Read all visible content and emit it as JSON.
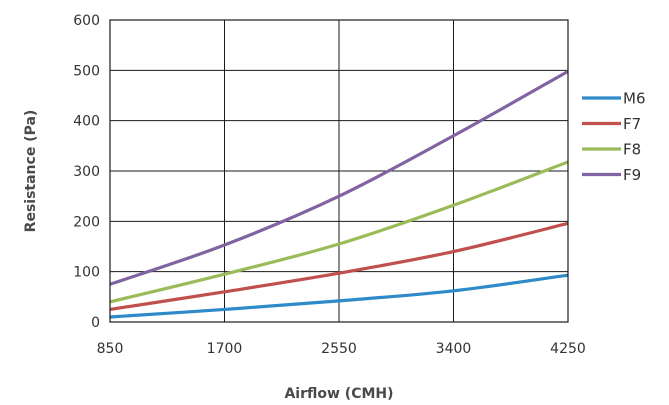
{
  "chart_data": {
    "type": "line",
    "title": "",
    "xlabel": "Airflow (CMH)",
    "ylabel": "Resistance (Pa)",
    "x": [
      850,
      1700,
      2550,
      3400,
      4250
    ],
    "xlim": [
      850,
      4250
    ],
    "ylim": [
      0,
      600
    ],
    "yticks": [
      0,
      100,
      200,
      300,
      400,
      500,
      600
    ],
    "grid": true,
    "legend_position": "right",
    "series": [
      {
        "name": "M6",
        "color": "#2e8ac8",
        "values": [
          10,
          25,
          42,
          62,
          93
        ]
      },
      {
        "name": "F7",
        "color": "#c0504d",
        "values": [
          25,
          60,
          97,
          140,
          196
        ]
      },
      {
        "name": "F8",
        "color": "#9bbb59",
        "values": [
          40,
          95,
          155,
          232,
          318
        ]
      },
      {
        "name": "F9",
        "color": "#8064a2",
        "values": [
          75,
          153,
          250,
          370,
          498
        ]
      }
    ]
  }
}
